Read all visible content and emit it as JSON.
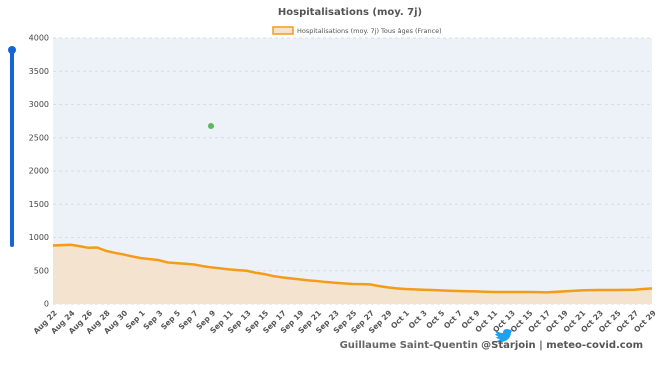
{
  "chart_data": {
    "type": "line",
    "title": "Hospitalisations (moy. 7j)",
    "series": [
      {
        "name": "Hospitalisations (moy. 7j) Tous âges (France)",
        "color": "#f39c1a",
        "fill": "#f3e3cf",
        "values": [
          880,
          885,
          890,
          870,
          845,
          850,
          800,
          770,
          745,
          715,
          690,
          675,
          660,
          625,
          615,
          605,
          595,
          570,
          550,
          535,
          520,
          510,
          500,
          470,
          450,
          420,
          400,
          385,
          370,
          355,
          345,
          330,
          320,
          310,
          300,
          298,
          295,
          270,
          250,
          235,
          225,
          220,
          215,
          210,
          205,
          200,
          195,
          192,
          190,
          185,
          180,
          180,
          180,
          180,
          180,
          178,
          175,
          182,
          190,
          198,
          205,
          208,
          210,
          210,
          210,
          212,
          215,
          225,
          235
        ]
      }
    ],
    "categories": [
      "Aug 22",
      null,
      "Aug 24",
      null,
      "Aug 26",
      null,
      "Aug 28",
      null,
      "Aug 30",
      null,
      "Sep 1",
      null,
      "Sep 3",
      null,
      "Sep 5",
      null,
      "Sep 7",
      null,
      "Sep 9",
      null,
      "Sep 11",
      null,
      "Sep 13",
      null,
      "Sep 15",
      null,
      "Sep 17",
      null,
      "Sep 19",
      null,
      "Sep 21",
      null,
      "Sep 23",
      null,
      "Sep 25",
      null,
      "Sep 27",
      null,
      "Sep 29",
      null,
      "Oct 1",
      null,
      "Oct 3",
      null,
      "Oct 5",
      null,
      "Oct 7",
      null,
      "Oct 9",
      null,
      "Oct 11",
      null,
      "Oct 13",
      null,
      "Oct 15",
      null,
      "Oct 17",
      null,
      "Oct 19",
      null,
      "Oct 21",
      null,
      "Oct 23",
      null,
      "Oct 25",
      null,
      "Oct 27",
      null,
      "Oct 29"
    ],
    "ylim": [
      0,
      4000
    ],
    "yticks": [
      0,
      500,
      1000,
      1500,
      2000,
      2500,
      3000,
      3500,
      4000
    ],
    "grid": true,
    "author": "Guillaume Saint-Quentin",
    "source": "@Starjoin | meteo-covid.com"
  }
}
